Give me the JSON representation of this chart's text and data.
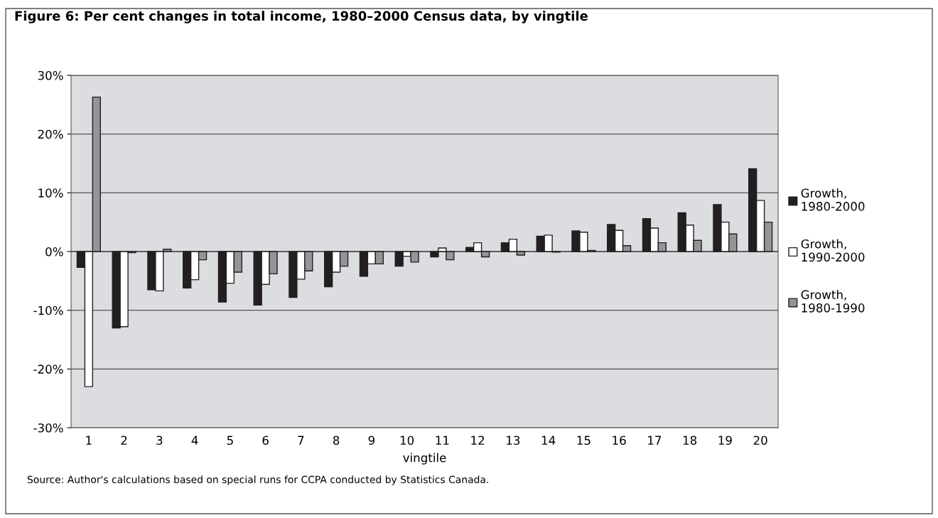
{
  "chart_data": {
    "type": "bar",
    "title": "Figure 6: Per cent changes in total income, 1980–2000 Census data, by vingtile",
    "xlabel": "vingtile",
    "categories": [
      "1",
      "2",
      "3",
      "4",
      "5",
      "6",
      "7",
      "8",
      "9",
      "10",
      "11",
      "12",
      "13",
      "14",
      "15",
      "16",
      "17",
      "18",
      "19",
      "20"
    ],
    "series": [
      {
        "name": "Growth,\n1980-2000",
        "color": "#231f20",
        "values": [
          -2.7,
          -13.0,
          -6.5,
          -6.2,
          -8.6,
          -9.1,
          -7.8,
          -6.0,
          -4.2,
          -2.5,
          -0.9,
          0.7,
          1.5,
          2.6,
          3.5,
          4.6,
          5.6,
          6.6,
          8.0,
          14.1
        ]
      },
      {
        "name": "Growth,\n1990-2000",
        "color": "#ffffff",
        "values": [
          -23.0,
          -12.8,
          -6.7,
          -4.8,
          -5.4,
          -5.6,
          -4.7,
          -3.5,
          -2.1,
          -0.8,
          0.6,
          1.5,
          2.1,
          2.8,
          3.3,
          3.6,
          4.0,
          4.5,
          5.0,
          8.7
        ]
      },
      {
        "name": "Growth,\n1980-1990",
        "color": "#939598",
        "values": [
          26.3,
          -0.2,
          0.4,
          -1.4,
          -3.5,
          -3.8,
          -3.3,
          -2.5,
          -2.1,
          -1.8,
          -1.4,
          -0.9,
          -0.6,
          -0.1,
          0.2,
          1.0,
          1.5,
          1.9,
          3.0,
          5.0
        ]
      }
    ],
    "ylim": [
      -30,
      30
    ],
    "yticks": [
      {
        "value": -30,
        "label": "-30%"
      },
      {
        "value": -20,
        "label": "-20%"
      },
      {
        "value": -10,
        "label": "-10%"
      },
      {
        "value": 0,
        "label": "0%"
      },
      {
        "value": 10,
        "label": "10%"
      },
      {
        "value": 20,
        "label": "20%"
      },
      {
        "value": 30,
        "label": "30%"
      }
    ],
    "grid": "y",
    "legend": "right",
    "annotations": [
      "Source: Author's calculations based on special runs for CCPA conducted by Statistics Canada."
    ]
  }
}
